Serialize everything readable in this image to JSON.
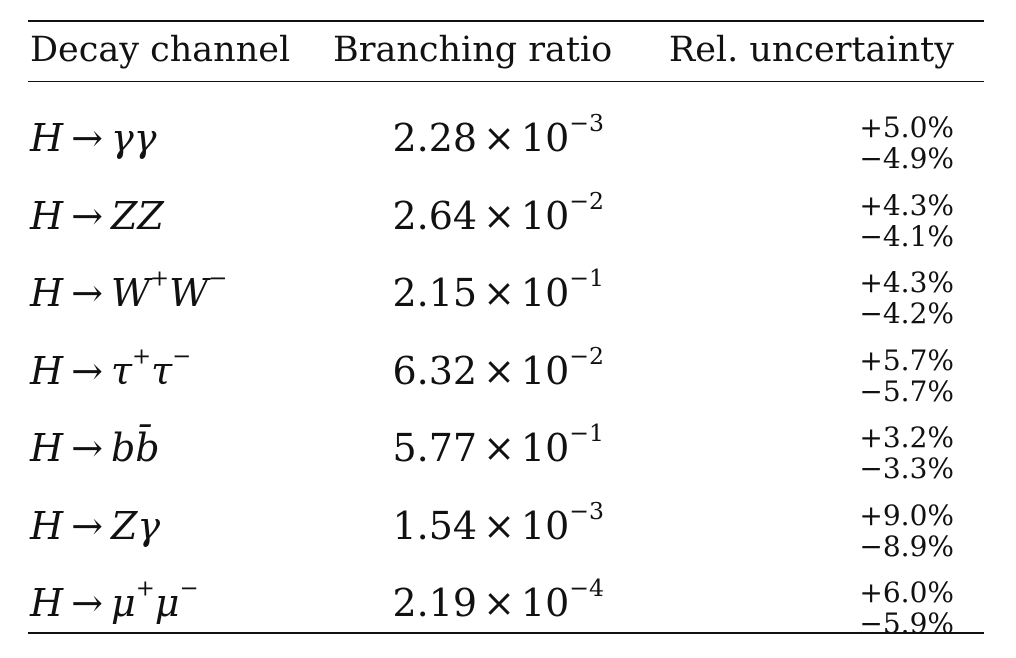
{
  "headers": {
    "channel": "Decay channel",
    "branching_ratio": "Branching ratio",
    "uncertainty": "Rel. uncertainty"
  },
  "rows": [
    {
      "parent": "H",
      "arrow": "→",
      "products": "γγ",
      "products_sup": "",
      "products2": "",
      "products2_sup": "",
      "mantissa": "2.28",
      "times": "×",
      "base": "10",
      "exponent": "−3",
      "plus": "+5.0%",
      "minus": "−4.9%"
    },
    {
      "parent": "H",
      "arrow": "→",
      "products": "ZZ",
      "products_sup": "",
      "products2": "",
      "products2_sup": "",
      "mantissa": "2.64",
      "times": "×",
      "base": "10",
      "exponent": "−2",
      "plus": "+4.3%",
      "minus": "−4.1%"
    },
    {
      "parent": "H",
      "arrow": "→",
      "products": "W",
      "products_sup": "+",
      "products2": "W",
      "products2_sup": "−",
      "mantissa": "2.15",
      "times": "×",
      "base": "10",
      "exponent": "−1",
      "plus": "+4.3%",
      "minus": "−4.2%"
    },
    {
      "parent": "H",
      "arrow": "→",
      "products": "τ",
      "products_sup": "+",
      "products2": "τ",
      "products2_sup": "−",
      "mantissa": "6.32",
      "times": "×",
      "base": "10",
      "exponent": "−2",
      "plus": "+5.7%",
      "minus": "−5.7%"
    },
    {
      "parent": "H",
      "arrow": "→",
      "products": "bb̄",
      "products_sup": "",
      "products2": "",
      "products2_sup": "",
      "mantissa": "5.77",
      "times": "×",
      "base": "10",
      "exponent": "−1",
      "plus": "+3.2%",
      "minus": "−3.3%"
    },
    {
      "parent": "H",
      "arrow": "→",
      "products": "Zγ",
      "products_sup": "",
      "products2": "",
      "products2_sup": "",
      "mantissa": "1.54",
      "times": "×",
      "base": "10",
      "exponent": "−3",
      "plus": "+9.0%",
      "minus": "−8.9%"
    },
    {
      "parent": "H",
      "arrow": "→",
      "products": "μ",
      "products_sup": "+",
      "products2": "μ",
      "products2_sup": "−",
      "mantissa": "2.19",
      "times": "×",
      "base": "10",
      "exponent": "−4",
      "plus": "+6.0%",
      "minus": "−5.9%"
    }
  ]
}
